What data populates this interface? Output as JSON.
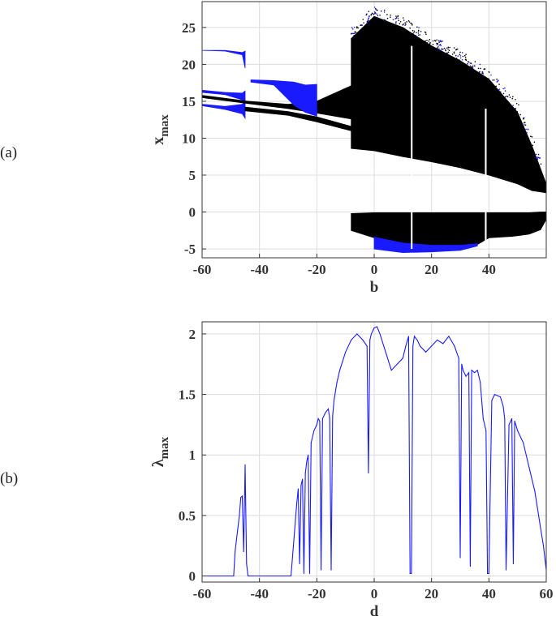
{
  "panel_labels": {
    "a": "(a)",
    "b": "(b)"
  },
  "chart_data": [
    {
      "type": "scatter",
      "panel": "(a)",
      "title": "",
      "xlabel": "b",
      "ylabel": "x",
      "ylabel_sub": "max",
      "xlim": [
        -60,
        60
      ],
      "ylim": [
        -6.2,
        28.5
      ],
      "xticks": [
        -60,
        -40,
        -20,
        0,
        20,
        40
      ],
      "yticks": [
        -5,
        0,
        5,
        10,
        15,
        20,
        25
      ],
      "grid": true,
      "colors": {
        "chaotic": "#000000",
        "periodic": "#1a1aff"
      },
      "bands": [
        {
          "color": "periodic",
          "x": [
            -60,
            -52,
            -46,
            -45
          ],
          "lo": [
            21.9,
            21.8,
            21.3,
            19.5
          ],
          "hi": [
            21.9,
            21.9,
            21.6,
            21.8
          ]
        },
        {
          "color": "periodic",
          "x": [
            -60,
            -52,
            -46,
            -45
          ],
          "lo": [
            16.2,
            15.9,
            15.2,
            14.6
          ],
          "hi": [
            16.5,
            16.2,
            16.1,
            16.4
          ]
        },
        {
          "color": "periodic",
          "x": [
            -60,
            -52,
            -46,
            -45
          ],
          "lo": [
            14.4,
            13.9,
            13.3,
            12.7
          ],
          "hi": [
            14.6,
            14.3,
            14.6,
            15.0
          ]
        },
        {
          "color": "chaotic",
          "x": [
            -60,
            -44,
            -30,
            -20,
            -8
          ],
          "lo": [
            15.5,
            14.7,
            14.0,
            13.4,
            12.6
          ],
          "hi": [
            15.8,
            15.0,
            14.6,
            15.0,
            17.1
          ]
        },
        {
          "color": "chaotic",
          "x": [
            -45,
            -30,
            -20,
            -8
          ],
          "lo": [
            13.7,
            13.1,
            12.2,
            11.0
          ],
          "hi": [
            14.2,
            13.6,
            12.9,
            11.6
          ]
        },
        {
          "color": "periodic",
          "x": [
            -43,
            -35,
            -28,
            -24,
            -20
          ],
          "lo": [
            17.6,
            17.2,
            14.5,
            13.5,
            13.0
          ],
          "hi": [
            17.9,
            17.8,
            17.6,
            17.2,
            17.3
          ]
        },
        {
          "color": "chaotic",
          "x": [
            -8,
            0,
            10,
            20,
            30,
            40,
            50,
            55,
            60
          ],
          "lo": [
            8.6,
            8.3,
            7.5,
            6.8,
            6.0,
            5.0,
            3.8,
            2.9,
            2.6
          ],
          "hi": [
            23.5,
            26.5,
            25.0,
            22.5,
            20.5,
            18.0,
            13.5,
            9.0,
            3.8
          ]
        },
        {
          "color": "chaotic",
          "x": [
            -8,
            0,
            10,
            20,
            30,
            36,
            40,
            48,
            54,
            58,
            60
          ],
          "lo": [
            -2.5,
            -3.5,
            -4.3,
            -4.6,
            -4.6,
            -4.4,
            -3.5,
            -3.3,
            -3.0,
            -2.4,
            -1.0
          ],
          "hi": [
            -0.2,
            -0.1,
            -0.1,
            -0.1,
            -0.1,
            -0.1,
            -0.1,
            -0.1,
            -0.1,
            0.0,
            0.0
          ]
        },
        {
          "color": "periodic",
          "x": [
            0,
            10,
            20,
            30,
            36
          ],
          "lo": [
            -5.0,
            -5.5,
            -5.4,
            -5.2,
            -4.6
          ],
          "hi": [
            -3.4,
            -4.2,
            -4.5,
            -4.5,
            -4.3
          ]
        }
      ],
      "windows": [
        {
          "x": [
            12.8,
            13.3
          ],
          "ylo": -5,
          "yhi": 22.5
        },
        {
          "x": [
            38.6,
            39.2
          ],
          "ylo": -5,
          "yhi": 14
        }
      ]
    },
    {
      "type": "line",
      "panel": "(b)",
      "title": "",
      "xlabel": "d",
      "ylabel": "λ",
      "ylabel_sub": "max",
      "xlim": [
        -60,
        60
      ],
      "ylim": [
        -0.05,
        2.1
      ],
      "xticks": [
        -60,
        -40,
        -20,
        0,
        20,
        40,
        60
      ],
      "yticks": [
        0,
        0.5,
        1,
        1.5,
        2
      ],
      "ytick_labels": [
        "0",
        "0.5",
        "1",
        "1.5",
        "2"
      ],
      "grid": true,
      "color": "#1a1aff",
      "x": [
        -60,
        -49,
        -48.5,
        -47,
        -46.5,
        -46,
        -45.5,
        -45,
        -44.5,
        -44,
        -30,
        -29,
        -28,
        -27,
        -26.5,
        -26,
        -25.5,
        -25,
        -24.5,
        -24,
        -23.5,
        -23,
        -22.5,
        -22,
        -21,
        -20,
        -19.5,
        -19,
        -18.5,
        -18,
        -17,
        -16,
        -15.5,
        -15,
        -14.5,
        -14,
        -13,
        -12,
        -10,
        -8,
        -6,
        -4,
        -2.5,
        -2,
        -1.5,
        -1,
        0,
        1,
        2,
        4,
        6,
        8,
        10,
        11,
        12,
        12.5,
        13,
        13.5,
        14,
        15,
        16,
        18,
        20,
        22,
        24,
        26,
        28,
        29.5,
        30,
        30.5,
        31,
        32,
        33,
        33.5,
        34,
        35,
        36,
        37,
        38,
        39,
        39.5,
        40,
        41,
        42,
        44,
        45,
        45.5,
        46,
        47,
        48,
        48.5,
        49,
        50,
        52,
        54,
        56,
        58,
        59,
        60
      ],
      "y": [
        0,
        0,
        0.2,
        0.5,
        0.65,
        0.66,
        0.2,
        0.92,
        0.1,
        0,
        0,
        0,
        0.3,
        0.6,
        0.72,
        0.1,
        0.75,
        0.8,
        0.02,
        0.85,
        0.95,
        1.0,
        0.02,
        1.1,
        1.2,
        1.25,
        1.3,
        1.28,
        0.05,
        1.3,
        1.35,
        1.38,
        1.3,
        0.05,
        1.32,
        1.45,
        1.6,
        1.7,
        1.85,
        1.95,
        2.0,
        1.95,
        1.9,
        0.85,
        1.95,
        2.0,
        2.05,
        2.06,
        2.0,
        1.85,
        1.7,
        1.75,
        1.8,
        1.9,
        1.98,
        0.02,
        0.02,
        1.9,
        1.98,
        1.95,
        1.9,
        1.85,
        1.9,
        1.95,
        1.92,
        1.98,
        1.9,
        1.8,
        0.15,
        1.75,
        1.7,
        1.65,
        1.68,
        0.08,
        1.7,
        1.68,
        1.7,
        1.6,
        1.3,
        1.2,
        0.02,
        0.02,
        1.45,
        1.5,
        1.48,
        1.4,
        1.3,
        0.05,
        1.25,
        1.3,
        0.1,
        1.28,
        1.2,
        1.1,
        0.9,
        0.7,
        0.4,
        0.25,
        0.05
      ]
    }
  ]
}
